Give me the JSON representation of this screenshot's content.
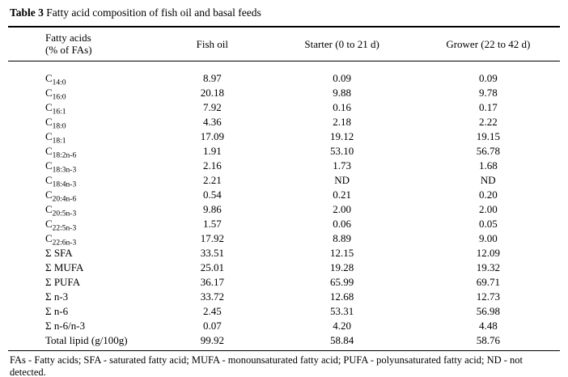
{
  "title": {
    "label": "Table 3",
    "text": "Fatty acid composition of fish oil and basal feeds"
  },
  "table": {
    "headers": [
      {
        "line1": "Fatty acids",
        "line2": "(% of FAs)"
      },
      "Fish oil",
      "Starter (0 to 21 d)",
      "Grower (22 to 42 d)"
    ],
    "rows": [
      {
        "label": {
          "main": "C",
          "sub": "14:0"
        },
        "values": [
          "8.97",
          "0.09",
          "0.09"
        ]
      },
      {
        "label": {
          "main": "C",
          "sub": "16:0"
        },
        "values": [
          "20.18",
          "9.88",
          "9.78"
        ]
      },
      {
        "label": {
          "main": "C",
          "sub": "16:1"
        },
        "values": [
          "7.92",
          "0.16",
          "0.17"
        ]
      },
      {
        "label": {
          "main": "C",
          "sub": "18:0"
        },
        "values": [
          "4.36",
          "2.18",
          "2.22"
        ]
      },
      {
        "label": {
          "main": "C",
          "sub": "18:1"
        },
        "values": [
          "17.09",
          "19.12",
          "19.15"
        ]
      },
      {
        "label": {
          "main": "C",
          "sub": "18:2n-6"
        },
        "values": [
          "1.91",
          "53.10",
          "56.78"
        ]
      },
      {
        "label": {
          "main": "C",
          "sub": "18:3n-3"
        },
        "values": [
          "2.16",
          "1.73",
          "1.68"
        ]
      },
      {
        "label": {
          "main": "C",
          "sub": "18:4n-3"
        },
        "values": [
          "2.21",
          "ND",
          "ND"
        ]
      },
      {
        "label": {
          "main": "C",
          "sub": "20:4n-6"
        },
        "values": [
          "0.54",
          "0.21",
          "0.20"
        ]
      },
      {
        "label": {
          "main": "C",
          "sub": "20:5n-3"
        },
        "values": [
          "9.86",
          "2.00",
          "2.00"
        ]
      },
      {
        "label": {
          "main": "C",
          "sub": "22:5n-3"
        },
        "values": [
          "1.57",
          "0.06",
          "0.05"
        ]
      },
      {
        "label": {
          "main": "C",
          "sub": "22:6n-3"
        },
        "values": [
          "17.92",
          "8.89",
          "9.00"
        ]
      },
      {
        "label": {
          "main": "Σ SFA",
          "sub": ""
        },
        "values": [
          "33.51",
          "12.15",
          "12.09"
        ]
      },
      {
        "label": {
          "main": "Σ MUFA",
          "sub": ""
        },
        "values": [
          "25.01",
          "19.28",
          "19.32"
        ]
      },
      {
        "label": {
          "main": "Σ PUFA",
          "sub": ""
        },
        "values": [
          "36.17",
          "65.99",
          "69.71"
        ]
      },
      {
        "label": {
          "main": "Σ n-3",
          "sub": ""
        },
        "values": [
          "33.72",
          "12.68",
          "12.73"
        ]
      },
      {
        "label": {
          "main": "Σ n-6",
          "sub": ""
        },
        "values": [
          "2.45",
          "53.31",
          "56.98"
        ]
      },
      {
        "label": {
          "main": "Σ n-6/n-3",
          "sub": ""
        },
        "values": [
          "0.07",
          "4.20",
          "4.48"
        ]
      },
      {
        "label": {
          "main": "Total lipid (g/100g)",
          "sub": ""
        },
        "values": [
          "99.92",
          "58.84",
          "58.76"
        ]
      }
    ]
  },
  "footnote": "FAs - Fatty acids; SFA - saturated fatty acid; MUFA - monounsaturated fatty acid; PUFA - polyunsaturated fatty acid; ND - not detected."
}
